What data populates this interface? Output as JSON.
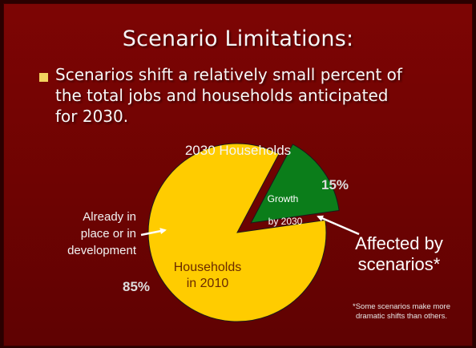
{
  "slide": {
    "title": "Scenario Limitations:",
    "bullet_lines": [
      "Scenarios shift a relatively small percent of",
      "the total jobs and households anticipated",
      "for 2030."
    ]
  },
  "colors": {
    "background": "#6e0302",
    "households_slice": "#ffcc00",
    "growth_slice": "#0b7d1a",
    "bullet": "#f3d35f"
  },
  "chart_data": {
    "type": "pie",
    "title": "2030 Households",
    "series": [
      {
        "name": "Households in 2010",
        "label_lines": [
          "Households",
          "in 2010"
        ],
        "value": 85,
        "label": "85%"
      },
      {
        "name": "Growth by 2030",
        "label_lines": [
          "Growth",
          "by 2030"
        ],
        "value": 15,
        "label": "15%",
        "exploded": true
      }
    ],
    "annotations": {
      "left_lines": [
        "Already in",
        "place or in",
        "development"
      ],
      "right_lines": [
        "Affected by",
        "scenarios*"
      ],
      "footnote_lines": [
        "*Some scenarios make more",
        "dramatic shifts than others."
      ]
    }
  }
}
